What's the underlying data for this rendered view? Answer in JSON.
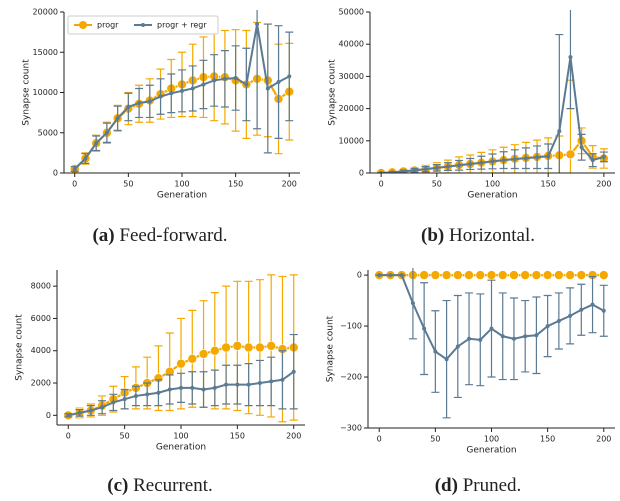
{
  "chart_data": [
    {
      "type": "line",
      "caption_label": "(a)",
      "caption": "Feed-forward.",
      "xlabel": "Generation",
      "ylabel": "Synapse count",
      "x": [
        0,
        10,
        20,
        30,
        40,
        50,
        60,
        70,
        80,
        90,
        100,
        110,
        120,
        130,
        140,
        150,
        160,
        170,
        180,
        190,
        200
      ],
      "xlim": [
        -10,
        210
      ],
      "xticks": [
        0,
        50,
        100,
        150,
        200
      ],
      "ylim": [
        0,
        20000
      ],
      "yticks": [
        0,
        5000,
        10000,
        15000,
        20000
      ],
      "legend": "upper left",
      "series": [
        {
          "name": "progr",
          "color": "#f5a800",
          "values": [
            500,
            1800,
            3700,
            5000,
            6800,
            8000,
            8600,
            9000,
            9800,
            10500,
            11000,
            11500,
            11900,
            12000,
            11900,
            11500,
            11000,
            11700,
            11500,
            9200,
            10100
          ],
          "errors": [
            300,
            700,
            1000,
            1300,
            1600,
            2000,
            2300,
            2700,
            3100,
            3600,
            4000,
            4500,
            5000,
            5500,
            5800,
            6300,
            6700,
            7000,
            7000,
            6800,
            6000
          ]
        },
        {
          "name": "progr + regr",
          "color": "#5b7a93",
          "values": [
            500,
            1800,
            3700,
            5000,
            6800,
            8200,
            8700,
            8900,
            9500,
            9900,
            10200,
            10500,
            11000,
            11500,
            11700,
            11800,
            11000,
            18500,
            10500,
            11300,
            12000
          ],
          "errors": [
            300,
            600,
            900,
            1200,
            1500,
            1700,
            1800,
            2000,
            2200,
            2400,
            2600,
            2800,
            3000,
            3200,
            3500,
            4000,
            4500,
            13000,
            8000,
            7000,
            5500
          ]
        }
      ]
    },
    {
      "type": "line",
      "caption_label": "(b)",
      "caption": "Horizontal.",
      "xlabel": "Generation",
      "ylabel": "Synapse count",
      "x": [
        0,
        10,
        20,
        30,
        40,
        50,
        60,
        70,
        80,
        90,
        100,
        110,
        120,
        130,
        140,
        150,
        160,
        170,
        180,
        190,
        200
      ],
      "xlim": [
        -10,
        210
      ],
      "xticks": [
        0,
        50,
        100,
        150,
        200
      ],
      "ylim": [
        0,
        50000
      ],
      "yticks": [
        0,
        10000,
        20000,
        30000,
        40000,
        50000
      ],
      "series": [
        {
          "color": "#f5a800",
          "values": [
            0,
            200,
            500,
            800,
            1200,
            1600,
            2000,
            2500,
            2800,
            3200,
            3600,
            4000,
            4400,
            4700,
            5000,
            5300,
            5500,
            5800,
            10000,
            5000,
            4500
          ],
          "errors": [
            100,
            300,
            600,
            900,
            1200,
            1600,
            2000,
            2500,
            2800,
            3200,
            3600,
            4000,
            4400,
            4800,
            5200,
            5600,
            6000,
            23000,
            4000,
            3500,
            3000
          ]
        },
        {
          "color": "#5b7a93",
          "values": [
            0,
            200,
            500,
            800,
            1200,
            1600,
            2000,
            2400,
            2800,
            3200,
            3600,
            4000,
            4300,
            4600,
            4900,
            5200,
            13000,
            36000,
            8000,
            4000,
            5000
          ],
          "errors": [
            100,
            200,
            400,
            600,
            800,
            1000,
            1200,
            1500,
            1700,
            2000,
            2300,
            2600,
            2900,
            3200,
            3500,
            3800,
            30000,
            16000,
            4000,
            2000,
            1500
          ]
        }
      ]
    },
    {
      "type": "line",
      "caption_label": "(c)",
      "caption": "Recurrent.",
      "xlabel": "Generation",
      "ylabel": "Synapse count",
      "x": [
        0,
        10,
        20,
        30,
        40,
        50,
        60,
        70,
        80,
        90,
        100,
        110,
        120,
        130,
        140,
        150,
        160,
        170,
        180,
        190,
        200
      ],
      "xlim": [
        -10,
        210
      ],
      "xticks": [
        0,
        50,
        100,
        150,
        200
      ],
      "ylim": [
        -600,
        9000
      ],
      "yticks": [
        0,
        2000,
        4000,
        6000,
        8000
      ],
      "series": [
        {
          "color": "#f5a800",
          "values": [
            0,
            150,
            300,
            600,
            1000,
            1400,
            1700,
            2000,
            2300,
            2700,
            3200,
            3500,
            3800,
            4000,
            4200,
            4300,
            4200,
            4200,
            4300,
            4100,
            4200
          ],
          "errors": [
            100,
            300,
            400,
            600,
            800,
            1000,
            1300,
            1600,
            2000,
            2400,
            2800,
            3000,
            3300,
            3600,
            3800,
            4000,
            4100,
            4200,
            4400,
            4500,
            4500
          ]
        },
        {
          "color": "#5b7a93",
          "values": [
            0,
            150,
            300,
            500,
            800,
            1000,
            1200,
            1300,
            1400,
            1600,
            1700,
            1700,
            1600,
            1700,
            1900,
            1900,
            1900,
            2000,
            2100,
            2200,
            2700
          ],
          "errors": [
            100,
            200,
            300,
            400,
            500,
            600,
            600,
            700,
            800,
            900,
            900,
            1000,
            1100,
            1100,
            1200,
            1200,
            1300,
            1400,
            1500,
            1800,
            2300
          ]
        }
      ]
    },
    {
      "type": "line",
      "caption_label": "(d)",
      "caption": "Pruned.",
      "xlabel": "Generation",
      "ylabel": "Synapse count",
      "x": [
        0,
        10,
        20,
        30,
        40,
        50,
        60,
        70,
        80,
        90,
        100,
        110,
        120,
        130,
        140,
        150,
        160,
        170,
        180,
        190,
        200
      ],
      "xlim": [
        -10,
        210
      ],
      "xticks": [
        0,
        50,
        100,
        150,
        200
      ],
      "ylim": [
        -300,
        10
      ],
      "yticks": [
        {
          "value": -300,
          "label": "−300"
        },
        {
          "value": -200,
          "label": "−200"
        },
        {
          "value": -100,
          "label": "−100"
        },
        0
      ],
      "series": [
        {
          "color": "#f5a800",
          "values": [
            0,
            0,
            0,
            0,
            0,
            0,
            0,
            0,
            0,
            0,
            0,
            0,
            0,
            0,
            0,
            0,
            0,
            0,
            0,
            0,
            0
          ],
          "errors": [
            0,
            0,
            0,
            0,
            0,
            0,
            0,
            0,
            0,
            0,
            0,
            0,
            0,
            0,
            0,
            0,
            0,
            0,
            0,
            0,
            0
          ]
        },
        {
          "color": "#5b7a93",
          "values": [
            0,
            0,
            0,
            -55,
            -105,
            -150,
            -165,
            -140,
            -125,
            -127,
            -105,
            -120,
            -125,
            -120,
            -118,
            -100,
            -90,
            -80,
            -68,
            -58,
            -70
          ],
          "errors": [
            0,
            0,
            0,
            70,
            90,
            80,
            115,
            100,
            90,
            90,
            95,
            85,
            80,
            70,
            75,
            60,
            55,
            55,
            50,
            55,
            50
          ]
        }
      ]
    }
  ]
}
